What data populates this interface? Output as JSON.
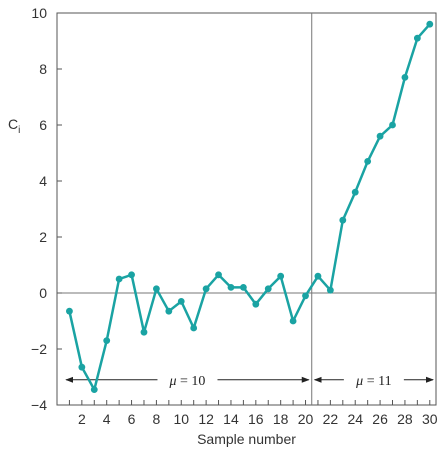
{
  "chart_data": {
    "type": "line",
    "xlabel": "Sample number",
    "ylabel": "C",
    "ylabel_subscript": "i",
    "xlim": [
      0,
      30.5
    ],
    "ylim": [
      -4,
      10
    ],
    "x_ticks": [
      2,
      4,
      6,
      8,
      10,
      12,
      14,
      16,
      18,
      20,
      22,
      24,
      26,
      28,
      30
    ],
    "x_tick_labels": [
      "2",
      "4",
      "6",
      "8",
      "10",
      "12",
      "14",
      "16",
      "18",
      "20",
      "22",
      "24",
      "26",
      "28",
      "30"
    ],
    "y_ticks": [
      -4,
      -2,
      0,
      2,
      4,
      6,
      8,
      10
    ],
    "y_tick_labels": [
      "−4",
      "−2",
      "0",
      "2",
      "4",
      "6",
      "8",
      "10"
    ],
    "grid": false,
    "color": "#1aa3a3",
    "series": [
      {
        "x": [
          1,
          2,
          3,
          4,
          5,
          6,
          7,
          8,
          9,
          10,
          11,
          12,
          13,
          14,
          15,
          16,
          17,
          18,
          19,
          20,
          21,
          22,
          23,
          24,
          25,
          26,
          27,
          28,
          29,
          30
        ],
        "values": [
          -0.65,
          -2.65,
          -3.45,
          -1.7,
          0.5,
          0.65,
          -1.4,
          0.15,
          -0.65,
          -0.3,
          -1.25,
          0.15,
          0.65,
          0.2,
          0.2,
          -0.4,
          0.15,
          0.6,
          -1.0,
          -0.1,
          0.6,
          0.1,
          2.6,
          3.6,
          4.7,
          5.6,
          6.0,
          7.7,
          9.1,
          9.6
        ]
      }
    ],
    "reference_lines": [
      {
        "orientation": "horizontal",
        "value": 0
      },
      {
        "orientation": "vertical",
        "value": 20.5
      }
    ],
    "annotations": [
      {
        "text_math": "μ",
        "text_rest": " = 10",
        "x_from": 0.5,
        "x_to": 20.5,
        "y": -3.1
      },
      {
        "text_math": "μ",
        "text_rest": " = 11",
        "x_from": 20.5,
        "x_to": 30.5,
        "y": -3.1
      }
    ]
  }
}
